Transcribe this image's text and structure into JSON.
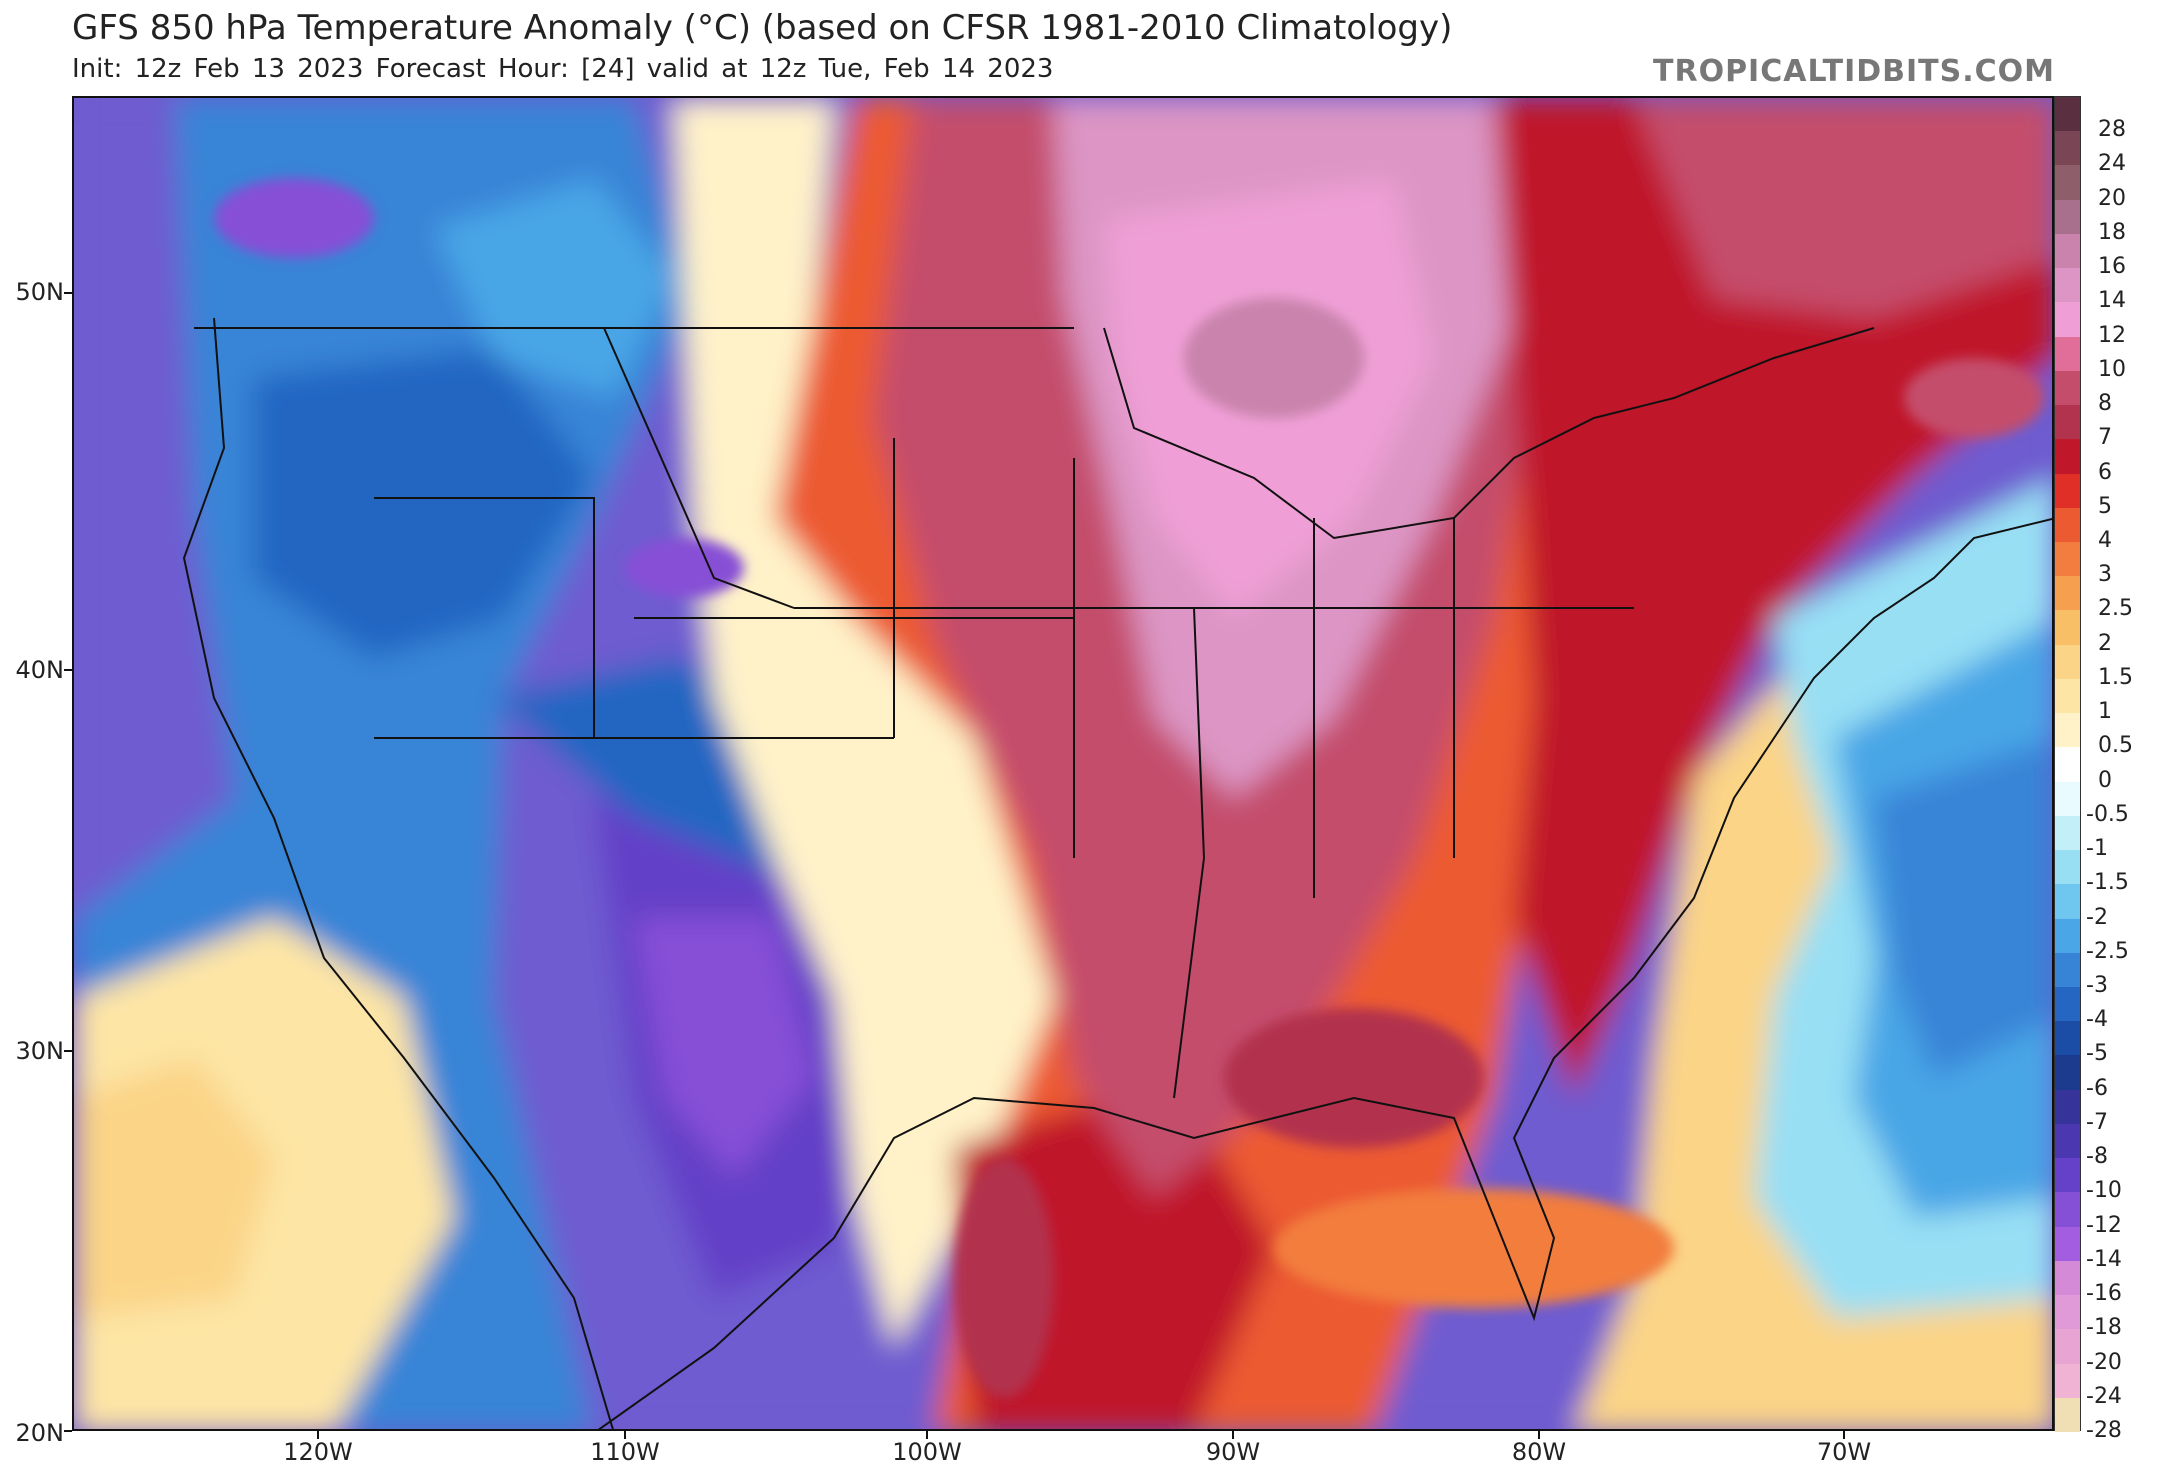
{
  "header": {
    "title": "GFS 850 hPa Temperature Anomaly (°C) (based on CFSR 1981-2010 Climatology)",
    "subtitle": "Init: 12z Feb 13 2023   Forecast Hour: [24]   valid at 12z Tue, Feb 14 2023",
    "credit": "TROPICALTIDBITS.COM"
  },
  "axes": {
    "lat_labels": [
      "50N",
      "40N",
      "30N",
      "20N"
    ],
    "lon_labels": [
      "120W",
      "110W",
      "100W",
      "90W",
      "80W",
      "70W"
    ]
  },
  "colorbar": {
    "labels": [
      "28",
      "24",
      "20",
      "18",
      "16",
      "14",
      "12",
      "10",
      "8",
      "7",
      "6",
      "5",
      "4",
      "3",
      "2.5",
      "2",
      "1.5",
      "1",
      "0.5",
      "0",
      "-0.5",
      "-1",
      "-1.5",
      "-2",
      "-2.5",
      "-3",
      "-4",
      "-5",
      "-6",
      "-7",
      "-8",
      "-10",
      "-12",
      "-14",
      "-16",
      "-18",
      "-20",
      "-24",
      "-28"
    ],
    "colors": [
      "#5a3040",
      "#7a4656",
      "#8e5f6a",
      "#a8708c",
      "#c983ac",
      "#dc95c4",
      "#ef9fd6",
      "#e06e98",
      "#c44d6c",
      "#b2334d",
      "#c0182a",
      "#e02f27",
      "#ec5a32",
      "#f27d3e",
      "#f6a04f",
      "#f8bf66",
      "#fbd487",
      "#fde5a5",
      "#fff2c9",
      "#ffffff",
      "#e9fbff",
      "#c2eff8",
      "#98dff4",
      "#6fc6ef",
      "#4aa6e6",
      "#3784d7",
      "#2466c2",
      "#1b4da6",
      "#1d3b8e",
      "#36349a",
      "#4b38b0",
      "#6441c8",
      "#8650d6",
      "#a35de0",
      "#d58ad8",
      "#e09ad8",
      "#e8a5d4",
      "#f0b3d4",
      "#f0deb5"
    ]
  }
}
